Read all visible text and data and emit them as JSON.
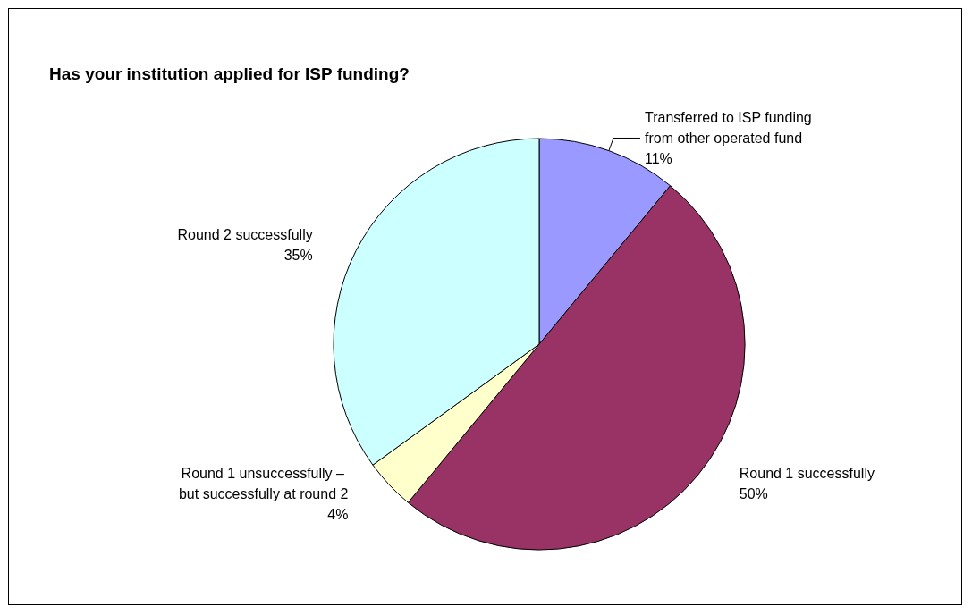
{
  "chart_data": {
    "type": "pie",
    "title": "Has your institution applied for ISP funding?",
    "categories": [
      "Transferred to ISP funding from other operated fund",
      "Round 1 successfully",
      "Round 1 unsuccessfully – but successfully at round 2",
      "Round 2 successfully"
    ],
    "values": [
      11,
      50,
      4,
      35
    ],
    "value_labels": [
      "11%",
      "50%",
      "4%",
      "35%"
    ],
    "colors": [
      "#9999ff",
      "#993366",
      "#ffffcc",
      "#ccffff"
    ],
    "legend": false
  }
}
